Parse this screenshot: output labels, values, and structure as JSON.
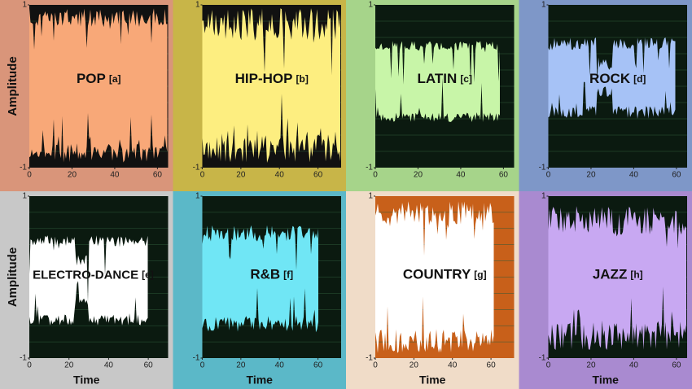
{
  "panels": [
    {
      "title": "POP",
      "tag": "[a]",
      "y_label": "Amplitude",
      "yticks": [
        1,
        -1
      ],
      "xticks": [
        0,
        20,
        40,
        60
      ]
    },
    {
      "title": "HIP-HOP",
      "tag": "[b]",
      "yticks": [
        1,
        -1
      ],
      "xticks": [
        0,
        20,
        40,
        60
      ]
    },
    {
      "title": "LATIN",
      "tag": "[c]",
      "yticks": [
        1,
        -1
      ],
      "xticks": [
        0,
        20,
        40,
        60
      ]
    },
    {
      "title": "ROCK",
      "tag": "[d]",
      "yticks": [
        1,
        -1
      ],
      "xticks": [
        0,
        20,
        40,
        60
      ]
    },
    {
      "title": "ELECTRO-DANCE",
      "tag": "[e]",
      "y_label": "Amplitude",
      "x_label": "Time",
      "yticks": [
        1,
        -1
      ],
      "xticks": [
        0,
        20,
        40,
        60
      ]
    },
    {
      "title": "R&B",
      "tag": "[f]",
      "x_label": "Time",
      "yticks": [
        1,
        -1
      ],
      "xticks": [
        0,
        20,
        40,
        60
      ]
    },
    {
      "title": "COUNTRY",
      "tag": "[g]",
      "x_label": "Time",
      "yticks": [
        1,
        -1
      ],
      "xticks": [
        0,
        20,
        40,
        60
      ]
    },
    {
      "title": "JAZZ",
      "tag": "[h]",
      "x_label": "Time",
      "yticks": [
        1,
        -1
      ],
      "xticks": [
        0,
        20,
        40,
        60
      ]
    }
  ]
}
